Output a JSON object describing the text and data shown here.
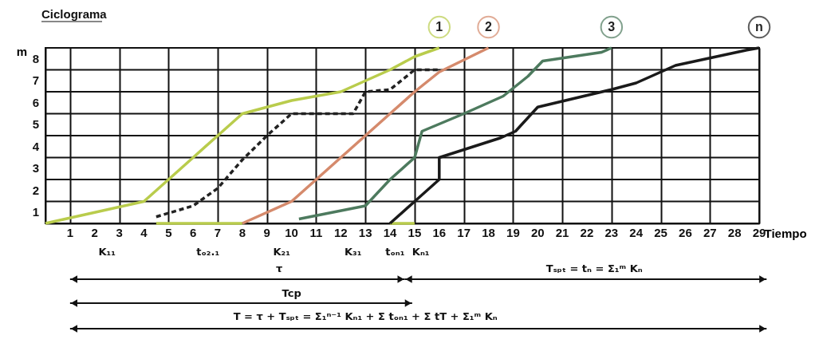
{
  "chart_data": {
    "type": "line",
    "title": "Ciclograma",
    "xlabel": "Tiempo",
    "ylabel": "m",
    "xlim": [
      0,
      29
    ],
    "xticks": [
      1,
      2,
      3,
      4,
      5,
      6,
      7,
      8,
      9,
      10,
      11,
      12,
      13,
      14,
      15,
      16,
      17,
      18,
      19,
      20,
      21,
      22,
      23,
      24,
      25,
      26,
      27,
      28,
      29
    ],
    "ylim": [
      0,
      8
    ],
    "yticks": [
      {
        "value": 0.5,
        "label": "1"
      },
      {
        "value": 1.5,
        "label": "2"
      },
      {
        "value": 2.5,
        "label": "3"
      },
      {
        "value": 3.5,
        "label": "4"
      },
      {
        "value": 4.5,
        "label": "5"
      },
      {
        "value": 5.5,
        "label": "6"
      },
      {
        "value": 6.5,
        "label": "7"
      },
      {
        "value": 7.5,
        "label": "8"
      }
    ],
    "grid": true,
    "marker": "none",
    "series": [
      {
        "name": "1",
        "color": "#b9cc4c",
        "x": [
          0,
          4,
          5,
          6,
          7,
          8,
          10,
          12,
          14,
          15,
          16
        ],
        "values": [
          0,
          1,
          2,
          3,
          4,
          5,
          5.6,
          6,
          7,
          7.6,
          8
        ]
      },
      {
        "color": "#b9cc4c",
        "x": [
          4.5,
          8
        ],
        "values": [
          0,
          0
        ]
      },
      {
        "color": "#b9cc4c",
        "x": [
          14,
          15
        ],
        "values": [
          0,
          0
        ]
      },
      {
        "color": "#222222",
        "line_style": "dashed",
        "x": [
          4.5,
          6,
          7,
          8,
          9,
          10,
          12.5,
          13,
          14,
          15,
          16
        ],
        "values": [
          0.3,
          0.8,
          1.6,
          2.9,
          4,
          5,
          5,
          6,
          6.1,
          7,
          7
        ]
      },
      {
        "name": "2",
        "color": "#d58a6c",
        "x": [
          8,
          10,
          11,
          12,
          13,
          14,
          15,
          16,
          18
        ],
        "values": [
          0,
          1,
          2,
          3,
          4,
          5,
          6,
          6.9,
          8
        ]
      },
      {
        "name": "3",
        "color": "#4d7a5e",
        "x": [
          10.3,
          13,
          14,
          15,
          15.3,
          17,
          18.6,
          19.6,
          20.2,
          22.6,
          23
        ],
        "values": [
          0.2,
          0.8,
          2,
          3,
          4.2,
          5,
          5.8,
          6.7,
          7.4,
          7.8,
          8
        ]
      },
      {
        "name": "n",
        "color": "#1a1a1a",
        "x": [
          14,
          15,
          16,
          16,
          18.5,
          19.1,
          20,
          23,
          24,
          25.6,
          28.5,
          29
        ],
        "values": [
          0,
          1,
          2,
          3,
          3.9,
          4.2,
          5.3,
          6.1,
          6.4,
          7.2,
          7.9,
          8
        ]
      }
    ],
    "annotations": [
      "K₁₁",
      "tₒ₂.₁",
      "K₂₁",
      "K₃₁",
      "tₒₙ₁",
      "Kₙ₁",
      "τ",
      "Tₛₚₜ = tₙ = Σ₁ᵐ Kₙ",
      "Tcp",
      "T = τ + Tₛₚₜ = Σ₁ⁿ⁻¹ Kₙ₁ + Σ tₒₙ₁ + Σ tT + Σ₁ᵐ Kₙ"
    ]
  }
}
